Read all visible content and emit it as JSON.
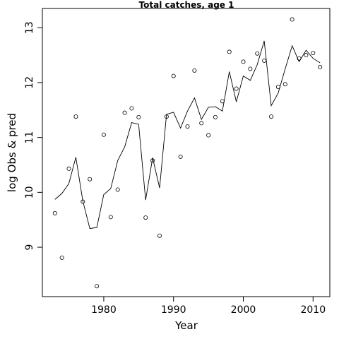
{
  "chart_data": {
    "type": "line",
    "title": "Total catches, age 1",
    "xlabel": "Year",
    "ylabel": "log Obs & pred",
    "xlim": [
      1971.3,
      1973.3
    ],
    "ylim": [
      8.1,
      13.35
    ],
    "xticks": [
      1980,
      1990,
      2000,
      2010
    ],
    "yticks": [
      9,
      10,
      11,
      12,
      13
    ],
    "series": [
      {
        "style": "line",
        "x": [
          1973,
          1974,
          1975,
          1976,
          1977,
          1978,
          1979,
          1980,
          1981,
          1982,
          1983,
          1984,
          1985,
          1986,
          1987,
          1988,
          1989,
          1990,
          1991,
          1992,
          1993,
          1994,
          1995,
          1996,
          1997,
          1998,
          1999,
          2000,
          2001,
          2002,
          2003,
          2004,
          2005,
          2006,
          2007,
          2008,
          2009,
          2010,
          2011
        ],
        "y": [
          9.87,
          9.98,
          10.16,
          10.64,
          9.84,
          9.34,
          9.36,
          9.96,
          10.07,
          10.58,
          10.83,
          11.27,
          11.24,
          9.86,
          10.63,
          10.08,
          11.42,
          11.46,
          11.17,
          11.48,
          11.72,
          11.33,
          11.55,
          11.56,
          11.48,
          12.2,
          11.65,
          12.12,
          12.04,
          12.33,
          12.76,
          11.58,
          11.81,
          12.25,
          12.67,
          12.38,
          12.59,
          12.44,
          12.36
        ]
      },
      {
        "style": "points",
        "x": [
          1973,
          1974,
          1975,
          1976,
          1977,
          1978,
          1979,
          1980,
          1981,
          1982,
          1983,
          1984,
          1985,
          1986,
          1987,
          1988,
          1989,
          1990,
          1991,
          1992,
          1993,
          1994,
          1995,
          1996,
          1997,
          1998,
          1999,
          2000,
          2001,
          2002,
          2003,
          2004,
          2005,
          2006,
          2007,
          2008,
          2009,
          2010,
          2011
        ],
        "y": [
          9.62,
          8.81,
          10.43,
          11.38,
          9.83,
          10.24,
          8.29,
          11.05,
          9.55,
          10.05,
          11.45,
          11.53,
          11.37,
          9.54,
          10.58,
          9.21,
          11.38,
          12.12,
          10.65,
          11.2,
          12.22,
          11.26,
          11.04,
          11.37,
          11.66,
          12.56,
          11.89,
          12.38,
          12.25,
          12.53,
          12.4,
          11.38,
          11.92,
          11.97,
          13.15,
          12.44,
          12.5,
          12.54,
          12.28
        ]
      }
    ]
  }
}
